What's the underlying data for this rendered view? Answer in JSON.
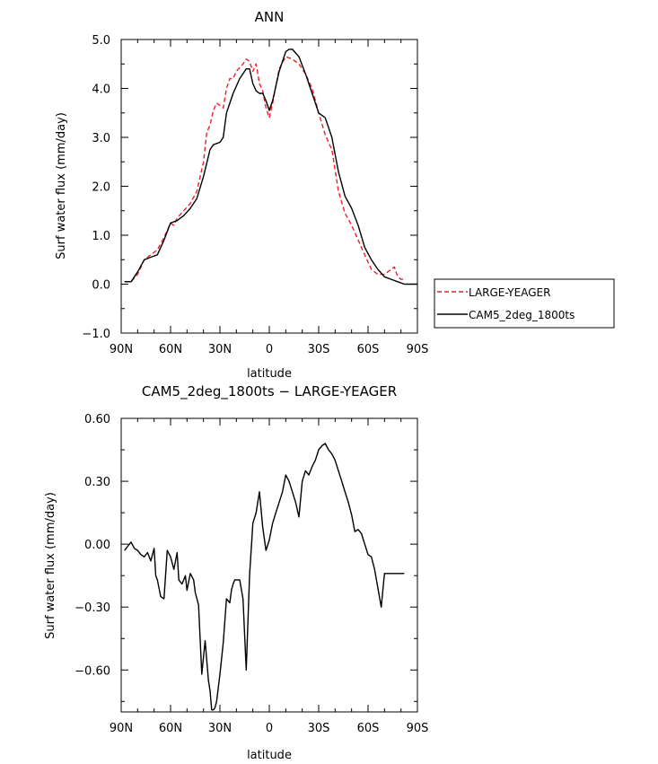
{
  "chart_data": [
    {
      "type": "line",
      "title": "ANN",
      "xlabel": "latitude",
      "ylabel": "Surf water flux (mm/day)",
      "xlim": [
        -90,
        90
      ],
      "ylim": [
        -1.0,
        5.0
      ],
      "x_ticks": [
        -90,
        -60,
        -30,
        0,
        30,
        60,
        90
      ],
      "x_tick_labels": [
        "90N",
        "60N",
        "30N",
        "0",
        "30S",
        "60S",
        "90S"
      ],
      "y_ticks": [
        -1.0,
        0.0,
        1.0,
        2.0,
        3.0,
        4.0,
        5.0
      ],
      "y_tick_labels": [
        "−1.0",
        "0.0",
        "1.0",
        "2.0",
        "3.0",
        "4.0",
        "5.0"
      ],
      "legend_position": "right",
      "series": [
        {
          "name": "LARGE-YEAGER",
          "color": "#e8212b",
          "dash": "dashed",
          "x": [
            -88,
            -84,
            -80,
            -76,
            -72,
            -68,
            -64,
            -60,
            -58,
            -56,
            -52,
            -48,
            -44,
            -40,
            -38,
            -36,
            -34,
            -32,
            -28,
            -26,
            -24,
            -22,
            -20,
            -16,
            -14,
            -12,
            -10,
            -8,
            -6,
            -4,
            -2,
            0,
            2,
            6,
            10,
            14,
            18,
            22,
            26,
            30,
            34,
            38,
            42,
            46,
            50,
            54,
            58,
            62,
            66,
            70,
            74,
            76,
            78,
            80,
            82
          ],
          "y": [
            0.05,
            0.05,
            0.2,
            0.5,
            0.6,
            0.7,
            0.95,
            1.25,
            1.2,
            1.35,
            1.5,
            1.65,
            1.9,
            2.5,
            3.1,
            3.25,
            3.55,
            3.7,
            3.6,
            4.0,
            4.2,
            4.2,
            4.35,
            4.5,
            4.6,
            4.55,
            4.35,
            4.5,
            4.1,
            3.95,
            3.6,
            3.4,
            3.7,
            4.4,
            4.65,
            4.6,
            4.5,
            4.3,
            4.0,
            3.5,
            3.05,
            2.75,
            1.9,
            1.45,
            1.2,
            0.9,
            0.6,
            0.3,
            0.2,
            0.2,
            0.3,
            0.35,
            0.15,
            0.1,
            0.1
          ]
        },
        {
          "name": "CAM5_2deg_1800ts",
          "color": "#000000",
          "dash": "solid",
          "x": [
            -88,
            -84,
            -80,
            -76,
            -72,
            -68,
            -64,
            -60,
            -56,
            -52,
            -48,
            -44,
            -40,
            -36,
            -34,
            -30,
            -28,
            -26,
            -22,
            -18,
            -14,
            -12,
            -10,
            -8,
            -6,
            -4,
            -2,
            0,
            2,
            6,
            10,
            12,
            14,
            18,
            22,
            26,
            30,
            34,
            38,
            42,
            46,
            50,
            54,
            58,
            62,
            66,
            70,
            74,
            78,
            82,
            86,
            90
          ],
          "y": [
            0.05,
            0.05,
            0.25,
            0.5,
            0.55,
            0.6,
            0.9,
            1.25,
            1.3,
            1.4,
            1.55,
            1.75,
            2.2,
            2.75,
            2.85,
            2.9,
            3.0,
            3.5,
            3.9,
            4.2,
            4.4,
            4.4,
            4.1,
            3.95,
            3.9,
            3.9,
            3.75,
            3.55,
            3.75,
            4.35,
            4.75,
            4.8,
            4.8,
            4.65,
            4.3,
            3.9,
            3.5,
            3.4,
            3.0,
            2.3,
            1.8,
            1.55,
            1.2,
            0.75,
            0.5,
            0.3,
            0.15,
            0.1,
            0.05,
            0.0,
            0.0,
            0.0
          ]
        }
      ]
    },
    {
      "type": "line",
      "title": "CAM5_2deg_1800ts − LARGE-YEAGER",
      "xlabel": "latitude",
      "ylabel": "Surf water flux (mm/day)",
      "xlim": [
        -90,
        90
      ],
      "ylim": [
        -0.8,
        0.6
      ],
      "x_ticks": [
        -90,
        -60,
        -30,
        0,
        30,
        60,
        90
      ],
      "x_tick_labels": [
        "90N",
        "60N",
        "30N",
        "0",
        "30S",
        "60S",
        "90S"
      ],
      "y_ticks": [
        -0.6,
        -0.3,
        0.0,
        0.3,
        0.6
      ],
      "y_tick_labels": [
        "−0.60",
        "−0.30",
        "0.00",
        "0.30",
        "0.60"
      ],
      "series": [
        {
          "name": "",
          "color": "#000000",
          "dash": "solid",
          "x": [
            -88,
            -86,
            -84,
            -82,
            -80,
            -78,
            -76,
            -74,
            -72,
            -71,
            -70,
            -69,
            -68,
            -66,
            -64,
            -62,
            -60,
            -58,
            -56,
            -55,
            -53,
            -51,
            -50,
            -48,
            -46,
            -45,
            -43,
            -41,
            -39,
            -37,
            -36,
            -35,
            -34,
            -33,
            -32,
            -30,
            -28,
            -26,
            -24,
            -23,
            -22,
            -21,
            -20,
            -18,
            -16,
            -14,
            -12,
            -10,
            -8,
            -6,
            -4,
            -2,
            0,
            2,
            4,
            6,
            8,
            10,
            12,
            14,
            16,
            18,
            20,
            22,
            24,
            26,
            28,
            30,
            32,
            34,
            36,
            38,
            40,
            42,
            44,
            46,
            48,
            50,
            52,
            54,
            56,
            58,
            60,
            62,
            64,
            66,
            68,
            70,
            72,
            74,
            76,
            78,
            80,
            82
          ],
          "y": [
            -0.03,
            -0.01,
            0.01,
            -0.02,
            -0.03,
            -0.05,
            -0.06,
            -0.04,
            -0.08,
            -0.05,
            -0.02,
            -0.15,
            -0.17,
            -0.25,
            -0.26,
            -0.03,
            -0.06,
            -0.12,
            -0.04,
            -0.17,
            -0.19,
            -0.15,
            -0.22,
            -0.14,
            -0.17,
            -0.23,
            -0.29,
            -0.62,
            -0.46,
            -0.65,
            -0.7,
            -0.79,
            -0.79,
            -0.78,
            -0.75,
            -0.62,
            -0.47,
            -0.26,
            -0.28,
            -0.22,
            -0.19,
            -0.17,
            -0.17,
            -0.17,
            -0.26,
            -0.6,
            -0.15,
            0.1,
            0.15,
            0.25,
            0.08,
            -0.03,
            0.02,
            0.1,
            0.15,
            0.2,
            0.25,
            0.33,
            0.3,
            0.25,
            0.2,
            0.13,
            0.3,
            0.35,
            0.33,
            0.37,
            0.4,
            0.45,
            0.47,
            0.48,
            0.45,
            0.43,
            0.4,
            0.35,
            0.3,
            0.25,
            0.2,
            0.14,
            0.06,
            0.07,
            0.05,
            0.0,
            -0.05,
            -0.06,
            -0.12,
            -0.21,
            -0.3,
            -0.14,
            -0.14,
            -0.14,
            -0.14,
            -0.14,
            -0.14,
            -0.14
          ]
        }
      ]
    }
  ]
}
